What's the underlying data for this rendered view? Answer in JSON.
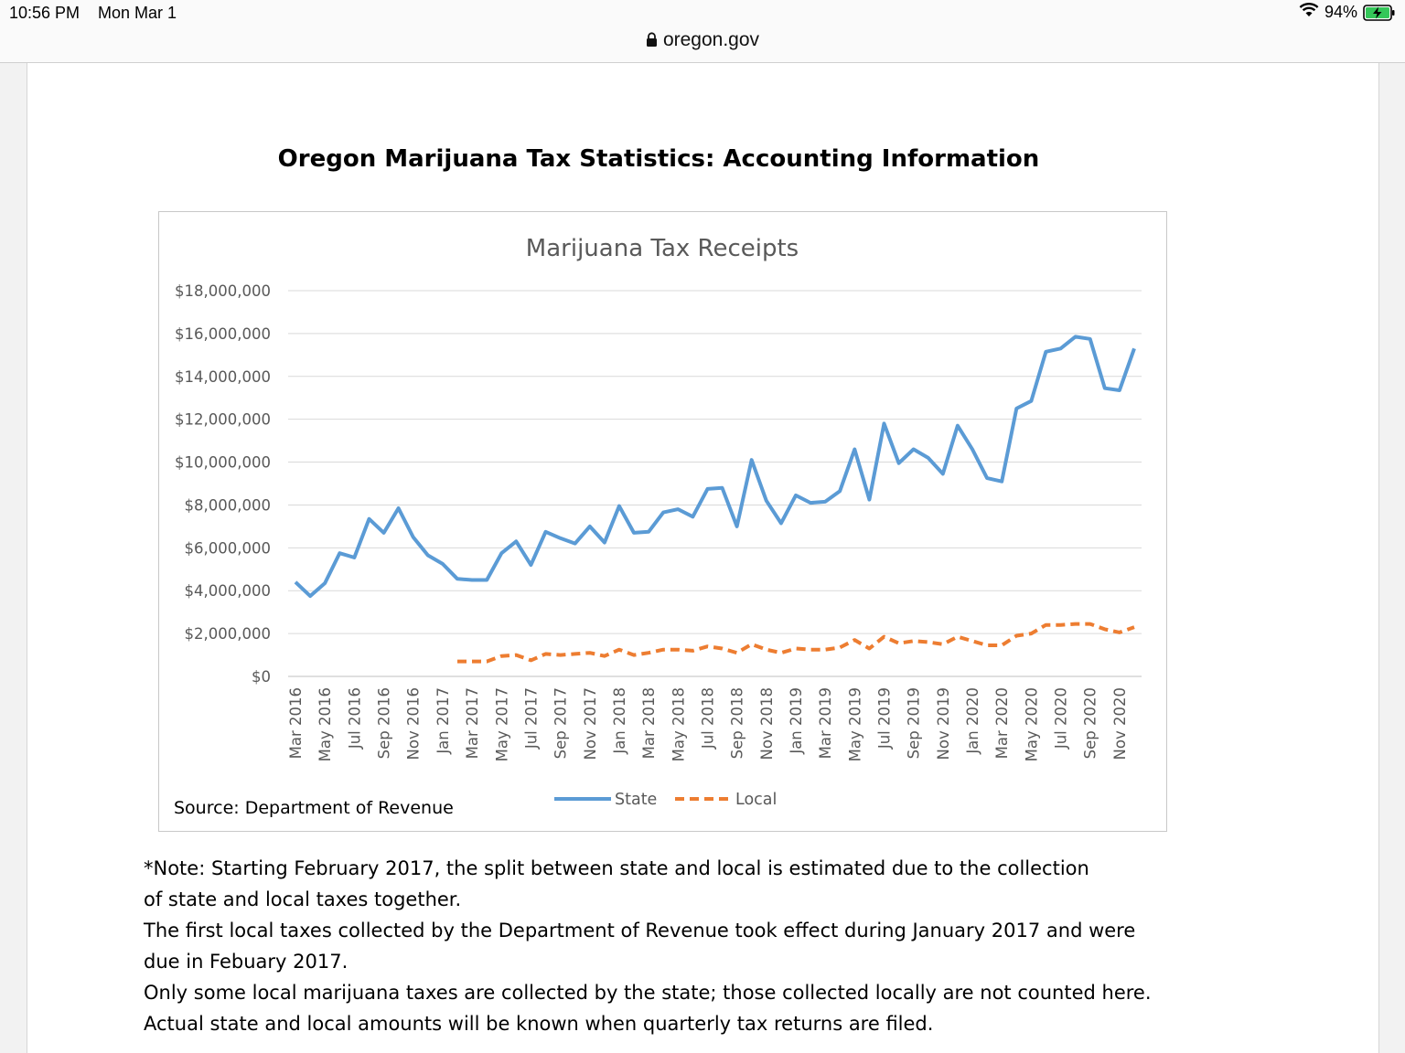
{
  "status_bar": {
    "time": "10:56 PM",
    "date": "Mon Mar 1",
    "battery": "94%"
  },
  "browser": {
    "url": "oregon.gov"
  },
  "document": {
    "title": "Oregon Marijuana Tax Statistics: Accounting Information",
    "notes": [
      "*Note: Starting February 2017, the split between state and local is estimated due to the collection",
      "of state and local taxes together.",
      "The first local taxes collected by the Department of Revenue took effect during January 2017 and were",
      "due in Febuary 2017.",
      "Only some local marijuana taxes are collected by the state; those collected locally are not counted here.",
      "Actual state and local amounts will be known when quarterly tax returns are filed."
    ]
  },
  "chart_data": {
    "type": "line",
    "title": "Marijuana Tax Receipts",
    "source": "Source: Department of Revenue",
    "ylim": [
      0,
      18000000
    ],
    "yticks": [
      "$0",
      "$2,000,000",
      "$4,000,000",
      "$6,000,000",
      "$8,000,000",
      "$10,000,000",
      "$12,000,000",
      "$14,000,000",
      "$16,000,000",
      "$18,000,000"
    ],
    "grid": true,
    "legend_position": "bottom",
    "x": [
      "Mar 2016",
      "Apr 2016",
      "May 2016",
      "Jun 2016",
      "Jul 2016",
      "Aug 2016",
      "Sep 2016",
      "Oct 2016",
      "Nov 2016",
      "Dec 2016",
      "Jan 2017",
      "Feb 2017",
      "Mar 2017",
      "Apr 2017",
      "May 2017",
      "Jun 2017",
      "Jul 2017",
      "Aug 2017",
      "Sep 2017",
      "Oct 2017",
      "Nov 2017",
      "Dec 2017",
      "Jan 2018",
      "Feb 2018",
      "Mar 2018",
      "Apr 2018",
      "May 2018",
      "Jun 2018",
      "Jul 2018",
      "Aug 2018",
      "Sep 2018",
      "Oct 2018",
      "Nov 2018",
      "Dec 2018",
      "Jan 2019",
      "Feb 2019",
      "Mar 2019",
      "Apr 2019",
      "May 2019",
      "Jun 2019",
      "Jul 2019",
      "Aug 2019",
      "Sep 2019",
      "Oct 2019",
      "Nov 2019",
      "Dec 2019",
      "Jan 2020",
      "Feb 2020",
      "Mar 2020",
      "Apr 2020",
      "May 2020",
      "Jun 2020",
      "Jul 2020",
      "Aug 2020",
      "Sep 2020",
      "Oct 2020",
      "Nov 2020",
      "Dec 2020"
    ],
    "xtick_labels": [
      "Mar 2016",
      "May 2016",
      "Jul 2016",
      "Sep 2016",
      "Nov 2016",
      "Jan 2017",
      "Mar 2017",
      "May 2017",
      "Jul 2017",
      "Sep 2017",
      "Nov 2017",
      "Jan 2018",
      "Mar 2018",
      "May 2018",
      "Jul 2018",
      "Sep 2018",
      "Nov 2018",
      "Jan 2019",
      "Mar 2019",
      "May 2019",
      "Jul 2019",
      "Sep 2019",
      "Nov 2019",
      "Jan 2020",
      "Mar 2020",
      "May 2020",
      "Jul 2020",
      "Sep 2020",
      "Nov 2020"
    ],
    "series": [
      {
        "name": "State",
        "color": "#5b9bd5",
        "style": "solid",
        "values": [
          4400000,
          3750000,
          4350000,
          5750000,
          5550000,
          7350000,
          6700000,
          7850000,
          6500000,
          5650000,
          5250000,
          4550000,
          4500000,
          4500000,
          5750000,
          6300000,
          5200000,
          6750000,
          6450000,
          6200000,
          7000000,
          6250000,
          7950000,
          6700000,
          6750000,
          7650000,
          7800000,
          7450000,
          8750000,
          8800000,
          7000000,
          10100000,
          8200000,
          7150000,
          8450000,
          8100000,
          8150000,
          8650000,
          10600000,
          8250000,
          11800000,
          9950000,
          10600000,
          10200000,
          9450000,
          11700000,
          10600000,
          9250000,
          9100000,
          12500000,
          12850000,
          15150000,
          15300000,
          15850000,
          15750000,
          13450000,
          13350000,
          15300000
        ]
      },
      {
        "name": "Local",
        "color": "#ed7d31",
        "style": "dashed",
        "values": [
          null,
          null,
          null,
          null,
          null,
          null,
          null,
          null,
          null,
          null,
          null,
          700000,
          700000,
          700000,
          950000,
          1000000,
          750000,
          1050000,
          1000000,
          1050000,
          1100000,
          950000,
          1250000,
          1000000,
          1100000,
          1250000,
          1250000,
          1200000,
          1400000,
          1300000,
          1100000,
          1500000,
          1250000,
          1100000,
          1300000,
          1250000,
          1250000,
          1350000,
          1700000,
          1300000,
          1850000,
          1550000,
          1650000,
          1600000,
          1500000,
          1850000,
          1650000,
          1450000,
          1450000,
          1900000,
          2000000,
          2400000,
          2400000,
          2450000,
          2450000,
          2200000,
          2050000,
          2300000
        ]
      }
    ]
  }
}
